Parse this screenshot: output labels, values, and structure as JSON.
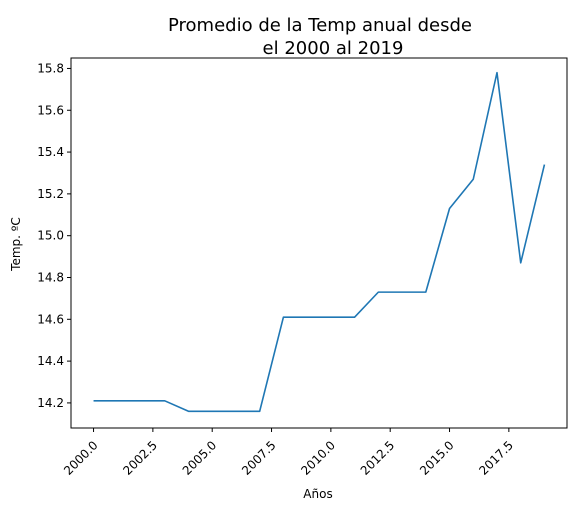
{
  "chart_data": {
    "type": "line",
    "title_lines": [
      "Promedio de la Temp anual desde",
      "el 2000 al 2019"
    ],
    "xlabel": "Años",
    "ylabel": "Temp. ºC",
    "xlim": [
      1999.05,
      2019.95
    ],
    "ylim": [
      14.08,
      15.85
    ],
    "x_ticks": [
      2000.0,
      2002.5,
      2005.0,
      2007.5,
      2010.0,
      2012.5,
      2015.0,
      2017.5
    ],
    "x_tick_labels": [
      "2000.0",
      "2002.5",
      "2005.0",
      "2007.5",
      "2010.0",
      "2012.5",
      "2015.0",
      "2017.5"
    ],
    "y_ticks": [
      14.2,
      14.4,
      14.6,
      14.8,
      15.0,
      15.2,
      15.4,
      15.6,
      15.8
    ],
    "y_tick_labels": [
      "14.2",
      "14.4",
      "14.6",
      "14.8",
      "15.0",
      "15.2",
      "15.4",
      "15.6",
      "15.8"
    ],
    "grid": false,
    "line_color": "#1f77b4",
    "series": [
      {
        "x": [
          2000,
          2001,
          2002,
          2003,
          2004,
          2005,
          2006,
          2007,
          2008,
          2009,
          2010,
          2011,
          2012,
          2013,
          2014,
          2015,
          2016,
          2017,
          2018,
          2019
        ],
        "values": [
          14.21,
          14.21,
          14.21,
          14.21,
          14.16,
          14.16,
          14.16,
          14.16,
          14.61,
          14.61,
          14.61,
          14.61,
          14.73,
          14.73,
          14.73,
          15.13,
          15.27,
          15.78,
          14.87,
          15.34
        ]
      }
    ]
  }
}
